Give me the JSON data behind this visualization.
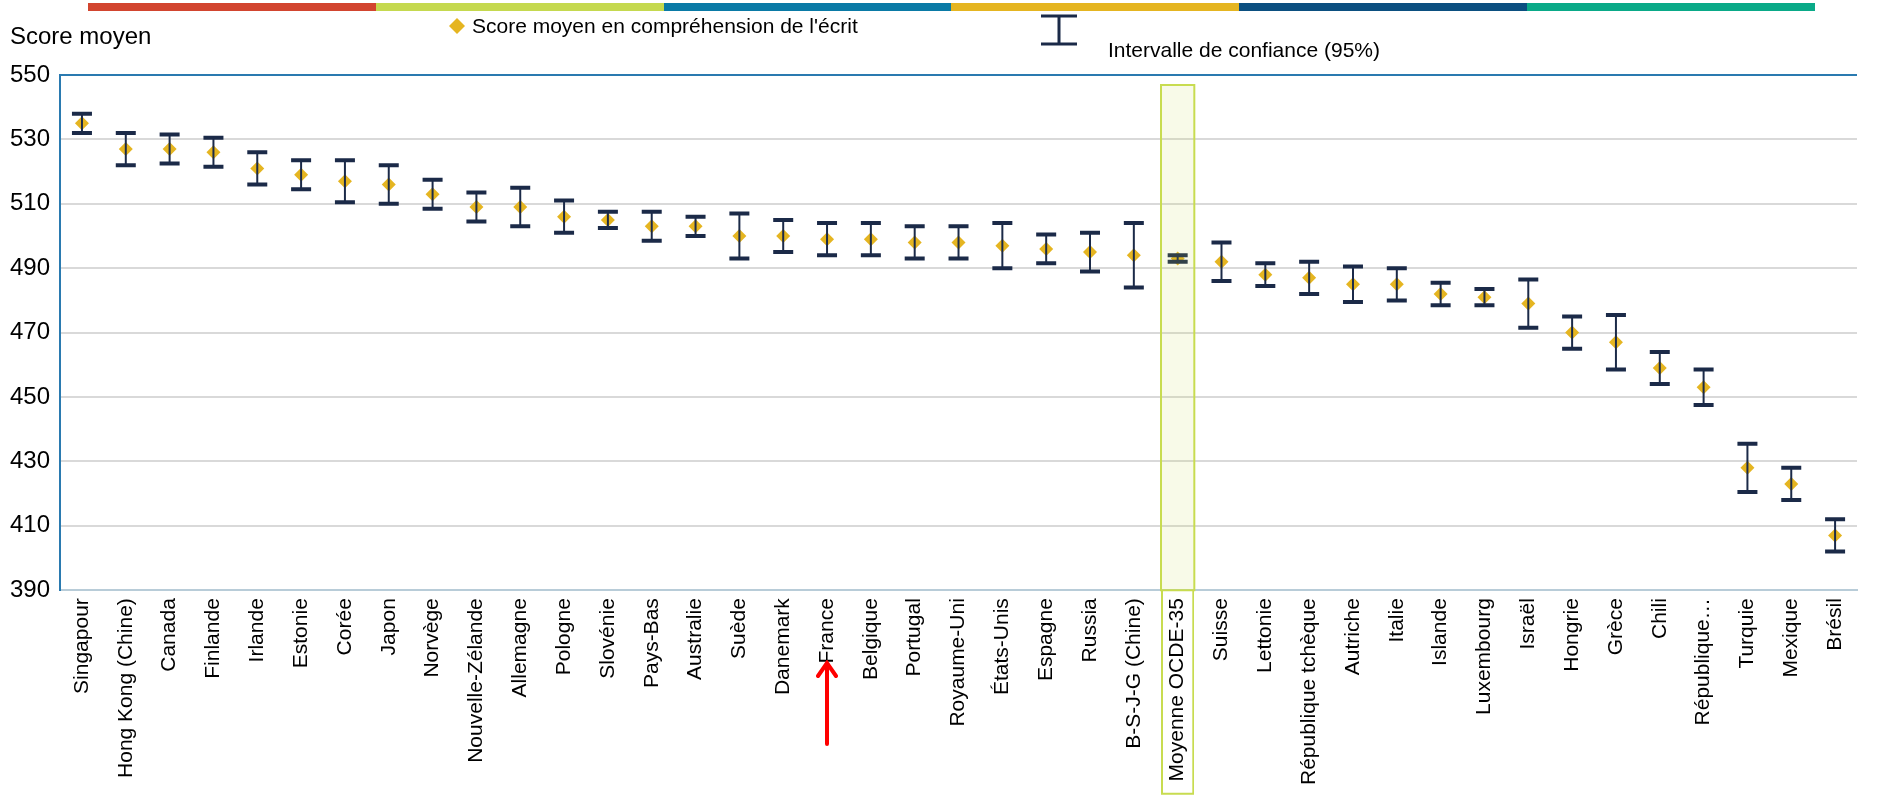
{
  "chart_data": {
    "type": "scatter",
    "ylabel": "Score moyen",
    "legend": "top",
    "marker": "diamond",
    "categories": [
      "Singapour",
      "Hong Kong (Chine)",
      "Canada",
      "Finlande",
      "Irlande",
      "Estonie",
      "Corée",
      "Japon",
      "Norvège",
      "Nouvelle-Zélande",
      "Allemagne",
      "Pologne",
      "Slovénie",
      "Pays-Bas",
      "Australie",
      "Suède",
      "Danemark",
      "France",
      "Belgique",
      "Portugal",
      "Royaume-Uni",
      "États-Unis",
      "Espagne",
      "Russia",
      "B-S-J-G (Chine)",
      "Moyenne OCDE-35",
      "Suisse",
      "Lettonie",
      "République tchèque",
      "Autriche",
      "Italie",
      "Islande",
      "Luxembourg",
      "Israël",
      "Hongrie",
      "Grèce",
      "Chili",
      "République…",
      "Turquie",
      "Mexique",
      "Brésil"
    ],
    "series": [
      {
        "name": "Score moyen en compréhension de l'écrit",
        "color": "#e5b521",
        "values": [
          535,
          527,
          527,
          526,
          521,
          519,
          517,
          516,
          513,
          509,
          509,
          506,
          505,
          503,
          503,
          500,
          500,
          499,
          499,
          498,
          498,
          497,
          496,
          495,
          494,
          493,
          492,
          488,
          487,
          485,
          485,
          482,
          481,
          479,
          470,
          467,
          459,
          453,
          428,
          423,
          407
        ],
        "errors": [
          3,
          5,
          4.5,
          4.5,
          5,
          4.5,
          6.5,
          6,
          4.5,
          4.5,
          6,
          5,
          2.5,
          4.5,
          3,
          7,
          5,
          5,
          5,
          5,
          5,
          7,
          4.5,
          6,
          10,
          1,
          6,
          3.5,
          5,
          5.5,
          5,
          3.5,
          2.5,
          7.5,
          5,
          8.5,
          5,
          5.5,
          7.5,
          5,
          5
        ]
      }
    ],
    "ylim": [
      390,
      550
    ],
    "yticks": [
      390,
      410,
      430,
      450,
      470,
      490,
      510,
      530,
      550
    ],
    "grid": "y",
    "bands": [
      {
        "axis": "x",
        "from": "Moyenne OCDE-35",
        "to": "Moyenne OCDE-35",
        "color": "#c8dc50"
      }
    ],
    "annotations": [
      "Intervalle de confiance  (95%)"
    ]
  }
}
